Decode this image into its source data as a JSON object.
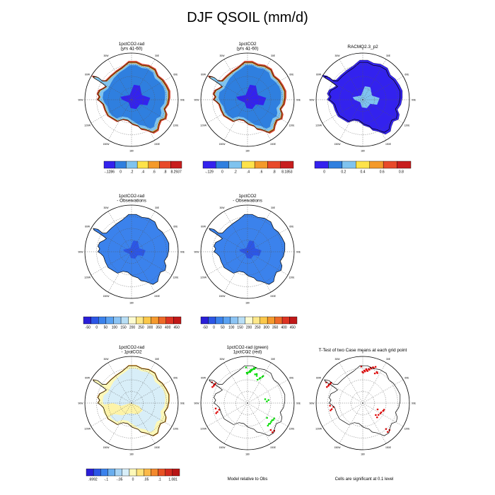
{
  "main_title": "DJF QSOIL (mm/d)",
  "colors": {
    "ocean_bg": "#ffffff",
    "outline": "#000000",
    "sig_green": "#00dd00",
    "sig_red": "#dd0000"
  },
  "lon_labels": [
    "0",
    "30E",
    "60E",
    "90E",
    "120E",
    "150E",
    "180",
    "150W",
    "120W",
    "90W",
    "60W",
    "30W"
  ],
  "panels": [
    {
      "title": [
        "1pctCO2-rad",
        "(yrs 41-60)"
      ],
      "map_style": "model"
    },
    {
      "title": [
        "1pctCO2",
        "(yrs 41-60)"
      ],
      "map_style": "model"
    },
    {
      "title": [
        "RACMO2.3_p2"
      ],
      "map_style": "obs"
    },
    {
      "title": [
        "1pctCO2-rad",
        "- Observations"
      ],
      "map_style": "bias"
    },
    {
      "title": [
        "1pctCO2",
        "- Observations"
      ],
      "map_style": "bias"
    },
    {
      "title": [
        "1pctCO2-rad",
        "- 1pctCO2"
      ],
      "map_style": "diff"
    },
    {
      "title": [
        "1pctCO2-rad (green)",
        "1pctCO2 (red)"
      ],
      "map_style": "sig_two"
    },
    {
      "title": [
        "T-Test of two Case means at each grid point"
      ],
      "map_style": "sig_one"
    }
  ],
  "colorbars": [
    {
      "colors": [
        "#3322ee",
        "#2f7fdf",
        "#7fc3ef",
        "#fde34a",
        "#f49a2a",
        "#e84a2a",
        "#c81e1e"
      ],
      "labels": [
        "-.1286",
        "0",
        ".2",
        ".4",
        ".6",
        ".8",
        "8.2937"
      ]
    },
    {
      "colors": [
        "#3322ee",
        "#2f7fdf",
        "#7fc3ef",
        "#fde34a",
        "#f49a2a",
        "#e84a2a",
        "#c81e1e"
      ],
      "labels": [
        "-.129",
        "0",
        ".2",
        ".4",
        ".6",
        ".8",
        "8.1853"
      ]
    },
    {
      "colors": [
        "#3322ee",
        "#2f7fdf",
        "#7fc3ef",
        "#fde34a",
        "#f49a2a",
        "#e84a2a",
        "#c81e1e"
      ],
      "labels": [
        "0",
        "0.2",
        "0.4",
        "0.6",
        "0.8"
      ]
    },
    {
      "colors": [
        "#2a1ed8",
        "#2c56e6",
        "#3b82ec",
        "#5aa2f2",
        "#8cc4f4",
        "#b8def5",
        "#fdfbd0",
        "#fde88a",
        "#fbc84a",
        "#f59a2e",
        "#ee6a28",
        "#dd3322",
        "#c01818"
      ],
      "labels": [
        "-50",
        "0",
        "50",
        "100",
        "150",
        "200",
        "250",
        "300",
        "350",
        "400",
        "450"
      ]
    },
    {
      "colors": [
        "#2a1ed8",
        "#2c56e6",
        "#3b82ec",
        "#5aa2f2",
        "#8cc4f4",
        "#b8def5",
        "#fdfbd0",
        "#fde88a",
        "#fbc84a",
        "#f59a2e",
        "#ee6a28",
        "#dd3322",
        "#c01818"
      ],
      "labels": [
        "-50",
        "0",
        "50",
        "100",
        "150",
        "200",
        "250",
        "300",
        "350",
        "400",
        "450"
      ]
    },
    {
      "colors": [
        "#2a1ed8",
        "#2c56e6",
        "#3b82ec",
        "#6aaeee",
        "#a8d4f4",
        "#d8eef8",
        "#fdf8b8",
        "#fde27a",
        "#fbb948",
        "#f38a2e",
        "#e85224",
        "#d42a1e",
        "#b81414"
      ],
      "labels": [
        ".6992",
        "-.1",
        "-.05",
        "0",
        ".05",
        ".1",
        "1.081"
      ]
    }
  ],
  "notes": {
    "model_relative": "Model relative to Obs",
    "cells_significant": "Cells are significant at 0.1 level"
  }
}
